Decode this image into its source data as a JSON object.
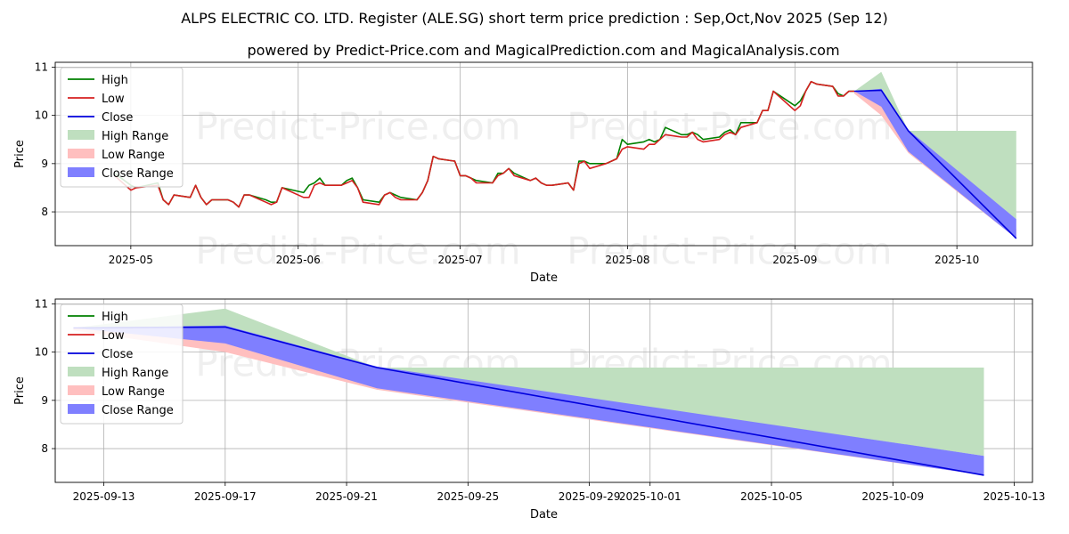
{
  "title": "ALPS ELECTRIC CO. LTD. Register (ALE.SG) short term price prediction : Sep,Oct,Nov 2025 (Sep 12)",
  "subtitle": "powered by Predict-Price.com and MagicalPrediction.com and MagicalAnalysis.com",
  "watermark": "Predict-Price.com",
  "colors": {
    "high": "#008000",
    "low": "#d62020",
    "close": "#0000dd",
    "high_range": "#bfdfbf",
    "low_range": "#ffbfbf",
    "close_range": "#7f7fff",
    "grid": "#b0b0b0"
  },
  "chart_data": [
    {
      "type": "line",
      "xlabel": "Date",
      "ylabel": "Price",
      "grid": true,
      "legend_placement": "top-left",
      "xlim": [
        "2025-04-17",
        "2025-10-15"
      ],
      "ylim": [
        7.3,
        11.1
      ],
      "xticks": [
        "2025-05",
        "2025-06",
        "2025-07",
        "2025-08",
        "2025-09",
        "2025-10"
      ],
      "xtick_dates": [
        "2025-05-01",
        "2025-06-01",
        "2025-07-01",
        "2025-08-01",
        "2025-09-01",
        "2025-10-01"
      ],
      "yticks": [
        8,
        9,
        10,
        11
      ],
      "legend": [
        "High",
        "Low",
        "Close",
        "High Range",
        "Low Range",
        "Close Range"
      ],
      "series": [
        {
          "name": "High",
          "x": [
            "2025-04-28",
            "2025-05-01",
            "2025-05-02",
            "2025-05-06",
            "2025-05-07",
            "2025-05-08",
            "2025-05-09",
            "2025-05-12",
            "2025-05-13",
            "2025-05-14",
            "2025-05-15",
            "2025-05-16",
            "2025-05-19",
            "2025-05-20",
            "2025-05-21",
            "2025-05-22",
            "2025-05-23",
            "2025-05-26",
            "2025-05-27",
            "2025-05-28",
            "2025-05-29",
            "2025-06-02",
            "2025-06-03",
            "2025-06-04",
            "2025-06-05",
            "2025-06-06",
            "2025-06-09",
            "2025-06-10",
            "2025-06-11",
            "2025-06-12",
            "2025-06-13",
            "2025-06-16",
            "2025-06-17",
            "2025-06-18",
            "2025-06-19",
            "2025-06-20",
            "2025-06-23",
            "2025-06-24",
            "2025-06-25",
            "2025-06-26",
            "2025-06-27",
            "2025-06-30",
            "2025-07-01",
            "2025-07-02",
            "2025-07-03",
            "2025-07-04",
            "2025-07-07",
            "2025-07-08",
            "2025-07-09",
            "2025-07-10",
            "2025-07-11",
            "2025-07-14",
            "2025-07-15",
            "2025-07-16",
            "2025-07-17",
            "2025-07-18",
            "2025-07-21",
            "2025-07-22",
            "2025-07-23",
            "2025-07-24",
            "2025-07-25",
            "2025-07-28",
            "2025-07-29",
            "2025-07-30",
            "2025-07-31",
            "2025-08-01",
            "2025-08-04",
            "2025-08-05",
            "2025-08-06",
            "2025-08-07",
            "2025-08-08",
            "2025-08-11",
            "2025-08-12",
            "2025-08-13",
            "2025-08-14",
            "2025-08-15",
            "2025-08-18",
            "2025-08-19",
            "2025-08-20",
            "2025-08-21",
            "2025-08-22",
            "2025-08-25",
            "2025-08-26",
            "2025-08-27",
            "2025-08-28",
            "2025-09-01",
            "2025-09-02",
            "2025-09-03",
            "2025-09-04",
            "2025-09-05",
            "2025-09-08",
            "2025-09-09",
            "2025-09-10",
            "2025-09-11",
            "2025-09-12"
          ],
          "values": [
            8.8,
            8.55,
            8.5,
            8.6,
            8.25,
            8.15,
            8.35,
            8.3,
            8.55,
            8.3,
            8.15,
            8.25,
            8.25,
            8.2,
            8.1,
            8.35,
            8.35,
            8.25,
            8.2,
            8.2,
            8.5,
            8.4,
            8.55,
            8.6,
            8.7,
            8.55,
            8.55,
            8.65,
            8.7,
            8.5,
            8.25,
            8.2,
            8.35,
            8.4,
            8.35,
            8.3,
            8.25,
            8.4,
            8.65,
            9.15,
            9.1,
            9.05,
            8.75,
            8.75,
            8.7,
            8.65,
            8.6,
            8.8,
            8.8,
            8.9,
            8.8,
            8.65,
            8.7,
            8.6,
            8.55,
            8.55,
            8.6,
            8.45,
            9.05,
            9.05,
            9.0,
            9.0,
            9.05,
            9.1,
            9.5,
            9.4,
            9.45,
            9.5,
            9.45,
            9.5,
            9.75,
            9.6,
            9.6,
            9.65,
            9.6,
            9.5,
            9.55,
            9.65,
            9.7,
            9.6,
            9.85,
            9.85,
            10.1,
            10.1,
            10.5,
            10.2,
            10.3,
            10.5,
            10.7,
            10.65,
            10.6,
            10.45,
            10.4,
            10.5,
            10.5
          ]
        },
        {
          "name": "Low",
          "x": [
            "2025-04-28",
            "2025-05-01",
            "2025-05-02",
            "2025-05-06",
            "2025-05-07",
            "2025-05-08",
            "2025-05-09",
            "2025-05-12",
            "2025-05-13",
            "2025-05-14",
            "2025-05-15",
            "2025-05-16",
            "2025-05-19",
            "2025-05-20",
            "2025-05-21",
            "2025-05-22",
            "2025-05-23",
            "2025-05-26",
            "2025-05-27",
            "2025-05-28",
            "2025-05-29",
            "2025-06-02",
            "2025-06-03",
            "2025-06-04",
            "2025-06-05",
            "2025-06-06",
            "2025-06-09",
            "2025-06-10",
            "2025-06-11",
            "2025-06-12",
            "2025-06-13",
            "2025-06-16",
            "2025-06-17",
            "2025-06-18",
            "2025-06-19",
            "2025-06-20",
            "2025-06-23",
            "2025-06-24",
            "2025-06-25",
            "2025-06-26",
            "2025-06-27",
            "2025-06-30",
            "2025-07-01",
            "2025-07-02",
            "2025-07-03",
            "2025-07-04",
            "2025-07-07",
            "2025-07-08",
            "2025-07-09",
            "2025-07-10",
            "2025-07-11",
            "2025-07-14",
            "2025-07-15",
            "2025-07-16",
            "2025-07-17",
            "2025-07-18",
            "2025-07-21",
            "2025-07-22",
            "2025-07-23",
            "2025-07-24",
            "2025-07-25",
            "2025-07-28",
            "2025-07-29",
            "2025-07-30",
            "2025-07-31",
            "2025-08-01",
            "2025-08-04",
            "2025-08-05",
            "2025-08-06",
            "2025-08-07",
            "2025-08-08",
            "2025-08-11",
            "2025-08-12",
            "2025-08-13",
            "2025-08-14",
            "2025-08-15",
            "2025-08-18",
            "2025-08-19",
            "2025-08-20",
            "2025-08-21",
            "2025-08-22",
            "2025-08-25",
            "2025-08-26",
            "2025-08-27",
            "2025-08-28",
            "2025-09-01",
            "2025-09-02",
            "2025-09-03",
            "2025-09-04",
            "2025-09-05",
            "2025-09-08",
            "2025-09-09",
            "2025-09-10",
            "2025-09-11",
            "2025-09-12"
          ],
          "values": [
            8.75,
            8.45,
            8.5,
            8.55,
            8.25,
            8.15,
            8.35,
            8.3,
            8.55,
            8.3,
            8.15,
            8.25,
            8.25,
            8.2,
            8.1,
            8.35,
            8.35,
            8.2,
            8.15,
            8.2,
            8.5,
            8.3,
            8.3,
            8.55,
            8.6,
            8.55,
            8.55,
            8.6,
            8.65,
            8.5,
            8.2,
            8.15,
            8.35,
            8.4,
            8.3,
            8.25,
            8.25,
            8.4,
            8.65,
            9.15,
            9.1,
            9.05,
            8.75,
            8.75,
            8.7,
            8.6,
            8.6,
            8.75,
            8.8,
            8.9,
            8.75,
            8.65,
            8.7,
            8.6,
            8.55,
            8.55,
            8.6,
            8.45,
            9.0,
            9.05,
            8.9,
            9.0,
            9.05,
            9.1,
            9.3,
            9.35,
            9.3,
            9.4,
            9.4,
            9.5,
            9.6,
            9.55,
            9.55,
            9.65,
            9.5,
            9.45,
            9.5,
            9.6,
            9.65,
            9.6,
            9.75,
            9.85,
            10.1,
            10.1,
            10.5,
            10.1,
            10.2,
            10.5,
            10.7,
            10.65,
            10.6,
            10.4,
            10.4,
            10.5,
            10.5
          ]
        },
        {
          "name": "Close",
          "x": [
            "2025-09-12",
            "2025-09-17",
            "2025-09-22",
            "2025-10-12"
          ],
          "values": [
            10.5,
            10.52,
            9.68,
            7.45
          ]
        }
      ],
      "ranges": [
        {
          "name": "High Range",
          "x": [
            "2025-09-12",
            "2025-09-17",
            "2025-09-22",
            "2025-10-12"
          ],
          "upper": [
            10.5,
            10.9,
            9.68,
            9.68
          ],
          "lower": [
            10.5,
            10.52,
            9.68,
            7.85
          ]
        },
        {
          "name": "Low Range",
          "x": [
            "2025-09-12",
            "2025-09-17",
            "2025-09-22",
            "2025-10-12"
          ],
          "upper": [
            10.5,
            10.5,
            9.68,
            7.65
          ],
          "lower": [
            10.45,
            10.0,
            9.22,
            7.45
          ]
        },
        {
          "name": "Close Range",
          "x": [
            "2025-09-12",
            "2025-09-17",
            "2025-09-22",
            "2025-10-12"
          ],
          "upper": [
            10.5,
            10.55,
            9.7,
            7.85
          ],
          "lower": [
            10.5,
            10.18,
            9.25,
            7.45
          ]
        }
      ]
    },
    {
      "type": "line",
      "xlabel": "Date",
      "ylabel": "Price",
      "grid": true,
      "legend_placement": "top-left",
      "xlim": [
        "2025-09-11.4",
        "2025-10-13.6"
      ],
      "ylim": [
        7.3,
        11.1
      ],
      "xticks": [
        "2025-09-13",
        "2025-09-17",
        "2025-09-21",
        "2025-09-25",
        "2025-09-29",
        "2025-10-01",
        "2025-10-05",
        "2025-10-09",
        "2025-10-13"
      ],
      "yticks": [
        8,
        9,
        10,
        11
      ],
      "legend": [
        "High",
        "Low",
        "Close",
        "High Range",
        "Low Range",
        "Close Range"
      ],
      "series": [
        {
          "name": "Close",
          "x": [
            "2025-09-12",
            "2025-09-17",
            "2025-09-22",
            "2025-10-12"
          ],
          "values": [
            10.5,
            10.52,
            9.68,
            7.45
          ]
        }
      ],
      "ranges": [
        {
          "name": "High Range",
          "x": [
            "2025-09-12",
            "2025-09-17",
            "2025-09-22",
            "2025-10-12"
          ],
          "upper": [
            10.5,
            10.9,
            9.68,
            9.68
          ],
          "lower": [
            10.5,
            10.52,
            9.68,
            7.85
          ]
        },
        {
          "name": "Low Range",
          "x": [
            "2025-09-12",
            "2025-09-17",
            "2025-09-22",
            "2025-10-12"
          ],
          "upper": [
            10.5,
            10.5,
            9.68,
            7.65
          ],
          "lower": [
            10.45,
            10.0,
            9.22,
            7.45
          ]
        },
        {
          "name": "Close Range",
          "x": [
            "2025-09-12",
            "2025-09-17",
            "2025-09-22",
            "2025-10-12"
          ],
          "upper": [
            10.5,
            10.55,
            9.7,
            7.85
          ],
          "lower": [
            10.5,
            10.18,
            9.25,
            7.45
          ]
        }
      ]
    }
  ]
}
